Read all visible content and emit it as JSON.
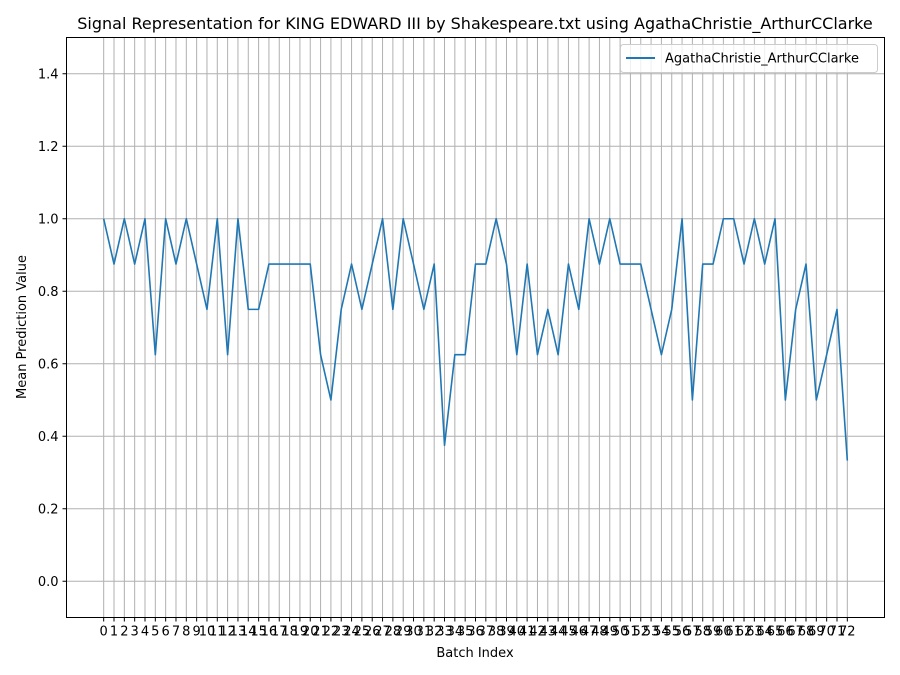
{
  "chart_data": {
    "type": "line",
    "title": "Signal Representation for KING EDWARD III by Shakespeare.txt using AgathaChristie_ArthurCClarke",
    "xlabel": "Batch Index",
    "ylabel": "Mean Prediction Value",
    "xlim": [
      -3.6,
      75.6
    ],
    "ylim": [
      -0.1,
      1.5
    ],
    "yticks": [
      0.0,
      0.2,
      0.4,
      0.6,
      0.8,
      1.0,
      1.2,
      1.4
    ],
    "ytick_labels": [
      "0.0",
      "0.2",
      "0.4",
      "0.6",
      "0.8",
      "1.0",
      "1.2",
      "1.4"
    ],
    "grid": true,
    "legend_position": "upper right",
    "series": [
      {
        "name": "AgathaChristie_ArthurCClarke",
        "color": "#1f77b4",
        "x": [
          0,
          1,
          2,
          3,
          4,
          5,
          6,
          7,
          8,
          9,
          10,
          11,
          12,
          13,
          14,
          15,
          16,
          17,
          18,
          19,
          20,
          21,
          22,
          23,
          24,
          25,
          26,
          27,
          28,
          29,
          30,
          31,
          32,
          33,
          34,
          35,
          36,
          37,
          38,
          39,
          40,
          41,
          42,
          43,
          44,
          45,
          46,
          47,
          48,
          49,
          50,
          51,
          52,
          53,
          54,
          55,
          56,
          57,
          58,
          59,
          60,
          61,
          62,
          63,
          64,
          65,
          66,
          67,
          68,
          69,
          70,
          71,
          72
        ],
        "values": [
          1.0,
          0.875,
          1.0,
          0.875,
          1.0,
          0.625,
          1.0,
          0.875,
          1.0,
          0.875,
          0.75,
          1.0,
          0.625,
          1.0,
          0.75,
          0.75,
          0.875,
          0.875,
          0.875,
          0.875,
          0.875,
          0.625,
          0.5,
          0.75,
          0.875,
          0.75,
          0.875,
          1.0,
          0.75,
          1.0,
          0.875,
          0.75,
          0.875,
          0.375,
          0.625,
          0.625,
          0.875,
          0.875,
          1.0,
          0.875,
          0.625,
          0.875,
          0.625,
          0.75,
          0.625,
          0.875,
          0.75,
          1.0,
          0.875,
          1.0,
          0.875,
          0.875,
          0.875,
          0.75,
          0.625,
          0.75,
          1.0,
          0.5,
          0.875,
          0.875,
          1.0,
          1.0,
          0.875,
          1.0,
          0.875,
          1.0,
          0.5,
          0.75,
          0.875,
          0.5,
          0.625,
          0.75,
          0.333
        ]
      }
    ]
  }
}
